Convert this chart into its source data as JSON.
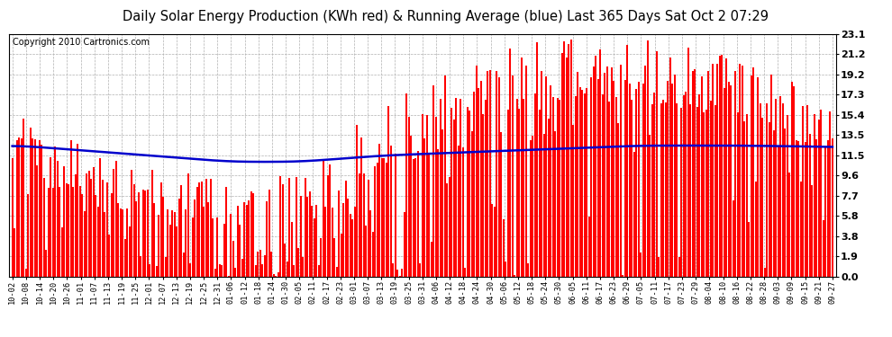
{
  "title": "Daily Solar Energy Production (KWh red) & Running Average (blue) Last 365 Days Sat Oct 2 07:29",
  "copyright": "Copyright 2010 Cartronics.com",
  "yticks": [
    0.0,
    1.9,
    3.8,
    5.8,
    7.7,
    9.6,
    11.5,
    13.5,
    15.4,
    17.3,
    19.2,
    21.2,
    23.1
  ],
  "ylim": [
    0.0,
    23.1
  ],
  "bar_color": "#ff0000",
  "line_color": "#0000cc",
  "background_color": "#ffffff",
  "grid_color": "#b0b0b0",
  "title_fontsize": 10.5,
  "copyright_fontsize": 7,
  "tick_labels": [
    "10-02",
    "10-08",
    "10-14",
    "10-20",
    "10-26",
    "11-01",
    "11-07",
    "11-13",
    "11-19",
    "11-25",
    "12-01",
    "12-07",
    "12-13",
    "12-19",
    "12-25",
    "12-31",
    "01-06",
    "01-12",
    "01-18",
    "01-24",
    "01-30",
    "02-05",
    "02-11",
    "02-17",
    "02-23",
    "03-01",
    "03-07",
    "03-13",
    "03-19",
    "03-25",
    "03-31",
    "04-06",
    "04-12",
    "04-18",
    "04-24",
    "04-30",
    "05-06",
    "05-12",
    "05-18",
    "05-24",
    "05-30",
    "06-05",
    "06-11",
    "06-17",
    "06-23",
    "06-29",
    "07-05",
    "07-11",
    "07-17",
    "07-23",
    "07-29",
    "08-04",
    "08-10",
    "08-16",
    "08-22",
    "08-28",
    "09-03",
    "09-09",
    "09-15",
    "09-21",
    "09-27"
  ],
  "n_days": 365,
  "running_avg_points": [
    12.5,
    12.4,
    12.3,
    12.2,
    12.1,
    12.0,
    11.9,
    11.8,
    11.7,
    11.6,
    11.5,
    11.4,
    11.3,
    11.2,
    11.1,
    11.0,
    10.9,
    10.9,
    10.9,
    10.9,
    10.9,
    10.9,
    11.0,
    11.1,
    11.2,
    11.3,
    11.4,
    11.5,
    11.55,
    11.6,
    11.65,
    11.7,
    11.75,
    11.8,
    11.85,
    11.9,
    11.95,
    12.0,
    12.05,
    12.1,
    12.15,
    12.2,
    12.25,
    12.3,
    12.35,
    12.4,
    12.45,
    12.45,
    12.45,
    12.45,
    12.45,
    12.45,
    12.45,
    12.45,
    12.45,
    12.4,
    12.4,
    12.4,
    12.4,
    12.3,
    12.3
  ]
}
